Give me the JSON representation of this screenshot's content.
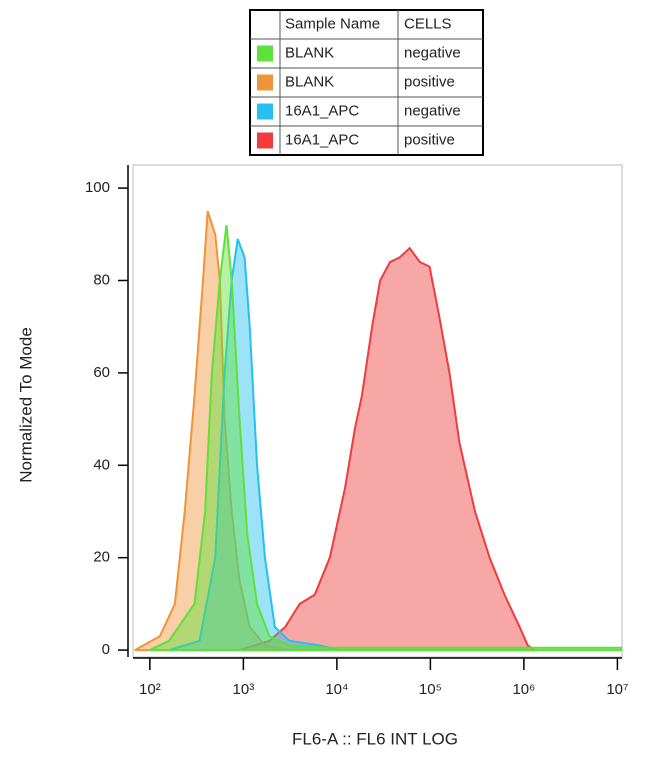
{
  "chart_data": {
    "type": "area",
    "x_label": "FL6-A :: FL6 INT LOG",
    "y_label": "Normalized To Mode",
    "x_scale": "log",
    "xlim": [
      66,
      11200000
    ],
    "ylim": [
      -1.5,
      105
    ],
    "xticks": [
      {
        "value": 100,
        "label": "10²"
      },
      {
        "value": 1000,
        "label": "10³"
      },
      {
        "value": 10000,
        "label": "10⁴"
      },
      {
        "value": 100000,
        "label": "10⁵"
      },
      {
        "value": 1000000,
        "label": "10⁶"
      },
      {
        "value": 10000000,
        "label": "10⁷"
      }
    ],
    "yticks": [
      0,
      20,
      40,
      60,
      80,
      100
    ],
    "legend_headers": [
      "Sample Name",
      "CELLS"
    ],
    "series": [
      {
        "name": "BLANK",
        "cells": "negative",
        "color": "#5fe03a",
        "x": [
          100,
          160,
          300,
          390,
          460,
          560,
          660,
          750,
          910,
          1100,
          1400,
          1900,
          3100,
          8400,
          11000000
        ],
        "values": [
          0,
          2,
          10,
          30,
          60,
          80,
          92,
          80,
          50,
          25,
          10,
          3,
          1,
          0.5,
          0.5
        ]
      },
      {
        "name": "BLANK",
        "cells": "positive",
        "color": "#f0943a",
        "x": [
          69,
          128,
          185,
          236,
          300,
          370,
          415,
          500,
          560,
          630,
          750,
          910,
          1170,
          1700,
          3100
        ],
        "values": [
          0,
          3,
          10,
          30,
          55,
          80,
          95,
          90,
          80,
          50,
          30,
          15,
          5,
          1,
          0
        ]
      },
      {
        "name": "16A1_APC",
        "cells": "negative",
        "color": "#26c0f0",
        "x": [
          160,
          340,
          500,
          630,
          750,
          870,
          1030,
          1170,
          1400,
          1700,
          2170,
          3100,
          6600,
          10700
        ],
        "values": [
          0,
          2,
          20,
          60,
          80,
          89,
          85,
          70,
          40,
          20,
          5,
          2,
          1,
          0
        ]
      },
      {
        "name": "16A1_APC",
        "cells": "positive",
        "color": "#f03c3c",
        "x": [
          910,
          1900,
          2800,
          4000,
          5800,
          8400,
          12200,
          15600,
          18500,
          23800,
          29000,
          37000,
          47000,
          60000,
          77000,
          98000,
          125000,
          160000,
          204000,
          300000,
          430000,
          620000,
          900000,
          1100000,
          1300000
        ],
        "values": [
          0,
          2,
          5,
          10,
          12,
          20,
          35,
          48,
          55,
          70,
          80,
          84,
          85,
          87,
          84,
          83,
          72,
          60,
          45,
          30,
          20,
          12,
          5,
          1,
          0
        ]
      }
    ]
  }
}
